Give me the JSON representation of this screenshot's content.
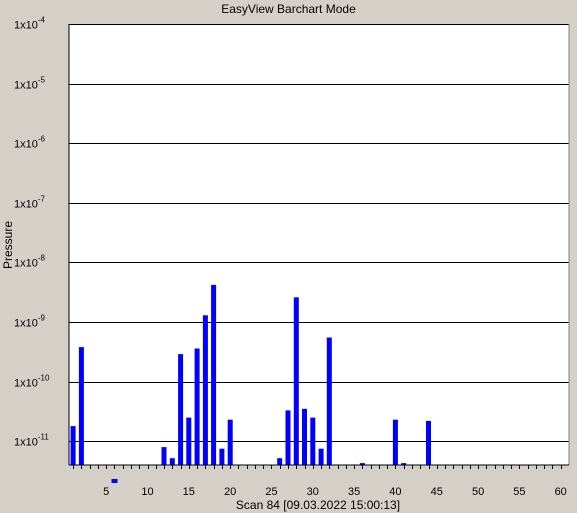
{
  "chart_data": {
    "type": "bar",
    "title": "EasyView Barchart Mode",
    "xlabel": "Scan 84 [09.03.2022 15:00:13]",
    "ylabel": "Pressure",
    "y_scale": "log",
    "ylim": [
      4e-12,
      0.0001
    ],
    "xlim": [
      0.5,
      61
    ],
    "grid": "horizontal at decades",
    "x_ticks": [
      5,
      10,
      15,
      20,
      25,
      30,
      35,
      40,
      45,
      50,
      55,
      60
    ],
    "x_tick_labels": [
      "5",
      "10",
      "15",
      "20",
      "25",
      "30",
      "35",
      "40",
      "45",
      "50",
      "55",
      "60"
    ],
    "y_ticks": [
      1e-11,
      1e-10,
      1e-09,
      1e-08,
      1e-07,
      1e-06,
      1e-05,
      0.0001
    ],
    "y_tick_labels": [
      {
        "base": "1x10",
        "exp": "-11"
      },
      {
        "base": "1x10",
        "exp": "-10"
      },
      {
        "base": "1x10",
        "exp": "-9"
      },
      {
        "base": "1x10",
        "exp": "-8"
      },
      {
        "base": "1x10",
        "exp": "-7"
      },
      {
        "base": "1x10",
        "exp": "-6"
      },
      {
        "base": "1x10",
        "exp": "-5"
      },
      {
        "base": "1x10",
        "exp": "-4"
      }
    ],
    "bar_color": "#0000ff",
    "background_color": "#ffffff",
    "series": [
      {
        "x": [
          1,
          2,
          12,
          13,
          14,
          15,
          16,
          17,
          18,
          19,
          20,
          26,
          27,
          28,
          29,
          30,
          31,
          32,
          36,
          40,
          41,
          44
        ],
        "values": [
          1.8e-11,
          3.8e-10,
          8e-12,
          5.2e-12,
          2.9e-10,
          2.5e-11,
          3.6e-10,
          1.3e-09,
          4.2e-09,
          7.5e-12,
          2.3e-11,
          5.2e-12,
          3.3e-11,
          2.6e-09,
          3.5e-11,
          2.5e-11,
          7.5e-12,
          5.5e-10,
          4.3e-12,
          2.3e-11,
          4.3e-12,
          2.2e-11
        ]
      }
    ],
    "below_axis_markers": [
      6
    ]
  }
}
